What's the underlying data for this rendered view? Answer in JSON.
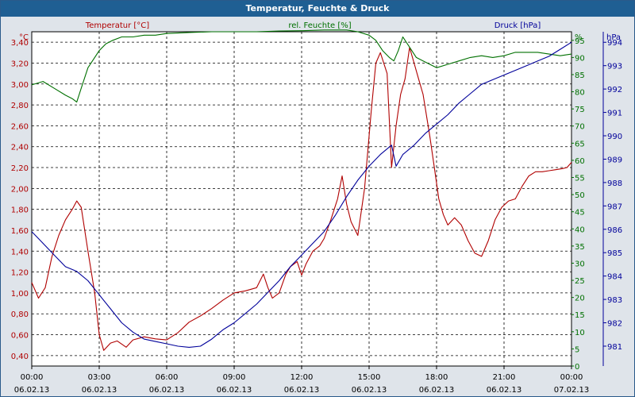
{
  "window": {
    "title": "Temperatur, Feuchte & Druck"
  },
  "chart_data": {
    "type": "line",
    "title": "Temperatur, Feuchte & Druck",
    "grid": true,
    "colors": {
      "temperature": "#b00000",
      "humidity": "#007000",
      "pressure": "#00009a",
      "grid": "#000000",
      "plot_bg": "#ffffff"
    },
    "x": {
      "unit": "hours",
      "range": [
        0,
        24
      ],
      "ticks": [
        0,
        3,
        6,
        9,
        12,
        15,
        18,
        21,
        24
      ],
      "tick_times": [
        "00:00",
        "03:00",
        "06:00",
        "09:00",
        "12:00",
        "15:00",
        "18:00",
        "21:00",
        "00:00"
      ],
      "tick_dates": [
        "06.02.13",
        "06.02.13",
        "06.02.13",
        "06.02.13",
        "06.02.13",
        "06.02.13",
        "06.02.13",
        "06.02.13",
        "07.02.13"
      ]
    },
    "axes": {
      "temperature": {
        "label": "Temperatur [°C]",
        "unit": "°C",
        "range": [
          0.3,
          3.5
        ],
        "ticks": [
          "0,40",
          "0,60",
          "0,80",
          "1,00",
          "1,20",
          "1,40",
          "1,60",
          "1,80",
          "2,00",
          "2,20",
          "2,40",
          "2,60",
          "2,80",
          "3,00",
          "3,20",
          "3,40"
        ]
      },
      "humidity": {
        "label": "rel. Feuchte [%]",
        "unit": "%",
        "range": [
          0,
          97.5
        ],
        "ticks": [
          "0",
          "5",
          "10",
          "15",
          "20",
          "25",
          "30",
          "35",
          "40",
          "45",
          "50",
          "55",
          "60",
          "65",
          "70",
          "75",
          "80",
          "85",
          "90",
          "95"
        ]
      },
      "pressure": {
        "label": "Druck [hPa]",
        "unit": "hPa",
        "range": [
          980.15,
          994.45
        ],
        "ticks": [
          "981",
          "982",
          "983",
          "984",
          "985",
          "986",
          "987",
          "988",
          "989",
          "990",
          "991",
          "992",
          "993",
          "994"
        ]
      }
    },
    "series": [
      {
        "name": "Temperatur [°C]",
        "axis": "temperature",
        "x": [
          0,
          0.3,
          0.6,
          0.9,
          1.2,
          1.5,
          1.8,
          2.0,
          2.2,
          2.5,
          2.8,
          3.0,
          3.2,
          3.5,
          3.8,
          4.2,
          4.5,
          5.0,
          5.5,
          6.0,
          6.5,
          7.0,
          7.5,
          8.0,
          8.5,
          9.0,
          9.5,
          10.0,
          10.3,
          10.5,
          10.7,
          11.0,
          11.3,
          11.5,
          11.8,
          12.0,
          12.2,
          12.5,
          12.8,
          13.0,
          13.3,
          13.6,
          13.8,
          14.0,
          14.2,
          14.5,
          14.8,
          15.1,
          15.3,
          15.5,
          15.8,
          16.0,
          16.2,
          16.4,
          16.6,
          16.8,
          17.0,
          17.2,
          17.4,
          17.7,
          17.9,
          18.1,
          18.3,
          18.5,
          18.8,
          19.1,
          19.4,
          19.7,
          20.0,
          20.3,
          20.6,
          20.9,
          21.2,
          21.5,
          21.8,
          22.1,
          22.4,
          22.7,
          23.0,
          23.3,
          23.6,
          23.8,
          24.0
        ],
        "values": [
          1.1,
          0.95,
          1.05,
          1.35,
          1.55,
          1.7,
          1.8,
          1.88,
          1.82,
          1.4,
          1.0,
          0.6,
          0.45,
          0.52,
          0.54,
          0.48,
          0.55,
          0.58,
          0.56,
          0.55,
          0.62,
          0.72,
          0.78,
          0.85,
          0.93,
          1.0,
          1.02,
          1.05,
          1.18,
          1.05,
          0.95,
          1.0,
          1.18,
          1.25,
          1.3,
          1.17,
          1.28,
          1.4,
          1.45,
          1.52,
          1.7,
          1.9,
          2.12,
          1.85,
          1.68,
          1.55,
          2.0,
          2.75,
          3.2,
          3.3,
          3.1,
          2.2,
          2.6,
          2.9,
          3.05,
          3.35,
          3.2,
          3.05,
          2.9,
          2.5,
          2.2,
          1.9,
          1.75,
          1.65,
          1.72,
          1.65,
          1.5,
          1.38,
          1.35,
          1.5,
          1.7,
          1.82,
          1.88,
          1.9,
          2.02,
          2.12,
          2.16,
          2.16,
          2.17,
          2.18,
          2.19,
          2.2,
          2.25
        ]
      },
      {
        "name": "rel. Feuchte [%]",
        "axis": "humidity",
        "x": [
          0,
          0.5,
          1.0,
          1.5,
          1.8,
          2.0,
          2.2,
          2.5,
          2.8,
          3.0,
          3.3,
          3.6,
          4.0,
          4.5,
          5.0,
          5.5,
          6.0,
          7.0,
          8.0,
          9.0,
          10.0,
          11.0,
          12.0,
          13.0,
          13.5,
          14.0,
          14.5,
          15.0,
          15.3,
          15.6,
          15.9,
          16.1,
          16.3,
          16.5,
          16.8,
          17.1,
          17.4,
          17.7,
          18.0,
          18.5,
          19.0,
          19.5,
          20.0,
          20.5,
          21.0,
          21.5,
          22.0,
          22.5,
          23.0,
          23.5,
          24.0
        ],
        "values": [
          82,
          83,
          81,
          79,
          78,
          77,
          81,
          87,
          90,
          92,
          94,
          95,
          96,
          96,
          96.5,
          96.5,
          97,
          97.3,
          97.5,
          97.5,
          97.5,
          97.7,
          97.8,
          98,
          98,
          98,
          97.5,
          96.5,
          95,
          92,
          90,
          89,
          92,
          96,
          93,
          90,
          89,
          88,
          87,
          88,
          89,
          90,
          90.5,
          90,
          90.5,
          91.5,
          91.5,
          91.5,
          91,
          90.5,
          91
        ]
      },
      {
        "name": "Druck [hPa]",
        "axis": "pressure",
        "x": [
          0,
          0.3,
          0.6,
          1.0,
          1.5,
          2.0,
          2.5,
          3.0,
          3.5,
          4.0,
          4.5,
          5.0,
          5.5,
          6.0,
          6.5,
          7.0,
          7.5,
          8.0,
          8.5,
          9.0,
          9.5,
          10.0,
          10.5,
          11.0,
          11.5,
          12.0,
          12.5,
          13.0,
          13.5,
          14.0,
          14.5,
          15.0,
          15.5,
          16.0,
          16.2,
          16.5,
          17.0,
          17.5,
          18.0,
          18.5,
          19.0,
          19.5,
          20.0,
          20.5,
          21.0,
          21.5,
          22.0,
          22.5,
          23.0,
          23.5,
          24.0
        ],
        "values": [
          985.9,
          985.6,
          985.3,
          984.9,
          984.4,
          984.2,
          983.8,
          983.2,
          982.6,
          982.0,
          981.6,
          981.3,
          981.2,
          981.1,
          981.0,
          980.95,
          981.0,
          981.3,
          981.7,
          982.0,
          982.4,
          982.8,
          983.3,
          983.8,
          984.4,
          984.9,
          985.4,
          985.9,
          986.6,
          987.4,
          988.1,
          988.7,
          989.2,
          989.6,
          988.7,
          989.2,
          989.6,
          990.1,
          990.5,
          990.9,
          991.4,
          991.8,
          992.2,
          992.4,
          992.6,
          992.8,
          993.0,
          993.2,
          993.4,
          993.7,
          994.0
        ]
      }
    ]
  }
}
